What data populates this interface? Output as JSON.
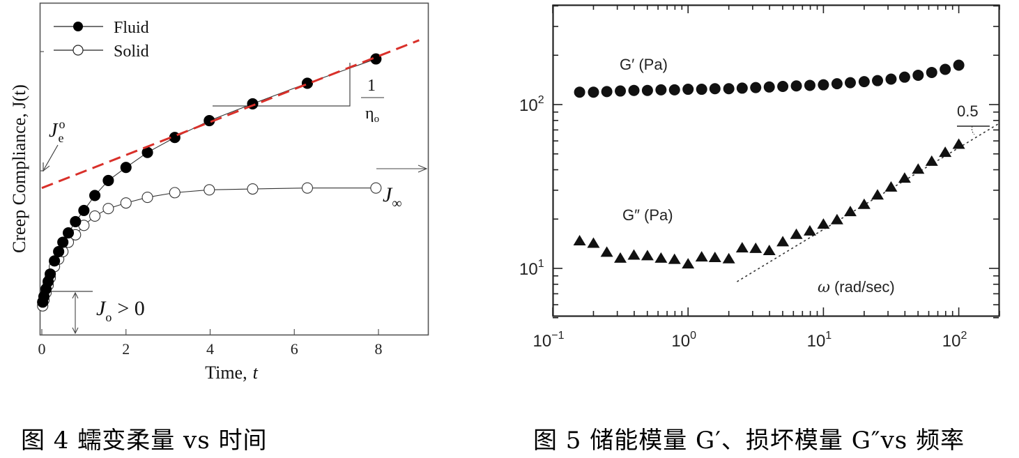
{
  "captions": {
    "left": "图 4 蠕变柔量 vs 时间",
    "right": "图 5 储能模量 G′、损坏模量 G″vs 频率"
  },
  "chart_data": [
    {
      "type": "scatter",
      "title": "",
      "xlabel": "Time, t",
      "ylabel": "Creep Compliance, J(t)",
      "xlim": [
        0,
        9
      ],
      "x_ticks": [
        "0",
        "2",
        "4",
        "6",
        "8"
      ],
      "grid": false,
      "legend_position": "upper-left",
      "legend": [
        "Fluid",
        "Solid"
      ],
      "colors": {
        "fluid": "#000000",
        "solid": "#ffffff",
        "fit_line": "#d9302a",
        "axes": "#555555"
      },
      "series": [
        {
          "name": "Fluid",
          "marker": "filled-circle",
          "x": [
            0.02,
            0.05,
            0.1,
            0.15,
            0.2,
            0.3,
            0.4,
            0.5,
            0.63,
            0.8,
            1.0,
            1.26,
            1.58,
            2.0,
            2.51,
            3.16,
            3.98,
            5.01,
            6.31,
            7.94
          ],
          "y": [
            0.05,
            0.08,
            0.12,
            0.16,
            0.2,
            0.27,
            0.32,
            0.37,
            0.42,
            0.48,
            0.54,
            0.62,
            0.7,
            0.77,
            0.85,
            0.93,
            1.02,
            1.11,
            1.22,
            1.35
          ]
        },
        {
          "name": "Solid",
          "marker": "open-circle",
          "x": [
            0.02,
            0.05,
            0.1,
            0.15,
            0.2,
            0.3,
            0.4,
            0.5,
            0.63,
            0.8,
            1.0,
            1.26,
            1.58,
            2.0,
            2.51,
            3.16,
            3.98,
            5.01,
            6.31,
            7.94
          ],
          "y": [
            0.03,
            0.06,
            0.1,
            0.14,
            0.18,
            0.24,
            0.28,
            0.32,
            0.37,
            0.41,
            0.46,
            0.51,
            0.55,
            0.58,
            0.61,
            0.635,
            0.65,
            0.655,
            0.66,
            0.66
          ]
        }
      ],
      "fit_line": {
        "style": "dashed",
        "color": "#d9302a",
        "x": [
          0,
          9
        ],
        "y": [
          0.66,
          1.45
        ]
      },
      "annotations": [
        {
          "text": "J_e^o",
          "target": "intercept of dashed line at t=0"
        },
        {
          "text": "1/η_o",
          "target": "slope triangle"
        },
        {
          "text": "J_∞",
          "target": "solid plateau arrow"
        },
        {
          "text": "J_o > 0",
          "target": "initial instantaneous compliance"
        }
      ],
      "ylim": [
        -0.12,
        1.65
      ]
    },
    {
      "type": "scatter",
      "title": "",
      "xlabel": "ω (rad/sec)",
      "ylabel": "",
      "xscale": "log",
      "yscale": "log",
      "xlim": [
        0.1,
        200
      ],
      "ylim": [
        4.5,
        450
      ],
      "x_ticks": [
        "10⁻¹",
        "10⁰",
        "10¹",
        "10²"
      ],
      "y_ticks": [
        "10¹",
        "10²"
      ],
      "grid": false,
      "series": [
        {
          "name": "G′ (Pa)",
          "marker": "filled-circle",
          "x": [
            0.158,
            0.2,
            0.251,
            0.316,
            0.398,
            0.501,
            0.631,
            0.794,
            1.0,
            1.26,
            1.58,
            2.0,
            2.51,
            3.16,
            3.98,
            5.01,
            6.31,
            7.94,
            10.0,
            12.6,
            15.8,
            20.0,
            25.1,
            31.6,
            39.8,
            50.1,
            63.1,
            79.4,
            100.0
          ],
          "y": [
            119,
            119,
            120,
            121,
            122,
            122,
            123,
            123,
            124,
            124,
            125,
            125,
            126,
            127,
            128,
            129,
            130,
            131,
            132,
            134,
            136,
            138,
            140,
            143,
            147,
            151,
            157,
            164,
            174
          ]
        },
        {
          "name": "G″ (Pa)",
          "marker": "filled-triangle",
          "x": [
            0.158,
            0.2,
            0.251,
            0.316,
            0.398,
            0.501,
            0.631,
            0.794,
            1.0,
            1.26,
            1.58,
            2.0,
            2.51,
            3.16,
            3.98,
            5.01,
            6.31,
            7.94,
            10.0,
            12.6,
            15.8,
            20.0,
            25.1,
            31.6,
            39.8,
            50.1,
            63.1,
            79.4,
            100.0
          ],
          "y": [
            14.8,
            14.3,
            12.6,
            11.6,
            12.1,
            12.0,
            11.6,
            11.4,
            10.7,
            11.8,
            11.7,
            11.5,
            13.4,
            13.3,
            12.9,
            14.6,
            16.2,
            17.0,
            18.7,
            19.9,
            22.3,
            24.7,
            28.2,
            31.5,
            35.7,
            40.5,
            45.3,
            51.3,
            57.5
          ]
        }
      ],
      "fit_line": {
        "style": "dotted",
        "slope": 0.5,
        "x": [
          2.3,
          200
        ],
        "y": [
          8.3,
          77
        ]
      },
      "annotations": [
        {
          "text": "G′ (Pa)"
        },
        {
          "text": "G″ (Pa)"
        },
        {
          "text": "0.5",
          "target": "slope of dotted line"
        },
        {
          "text": "ω (rad/sec)"
        }
      ]
    }
  ],
  "left_chart": {
    "ylabel": "Creep Compliance, J(t)",
    "xlabel_main": "Time,",
    "xlabel_var": "t",
    "x_ticks": [
      "0",
      "2",
      "4",
      "6",
      "8"
    ],
    "legend": {
      "fluid": "Fluid",
      "solid": "Solid"
    },
    "ann_je": "J",
    "ann_je_sup": "o",
    "ann_je_sub": "e",
    "ann_slope_num": "1",
    "ann_slope_den": "η",
    "ann_slope_den_sub": "o",
    "ann_jinf": "J",
    "ann_jinf_sub": "∞",
    "ann_jo": "J",
    "ann_jo_sub": "o",
    "ann_jo_rest": "> 0"
  },
  "right_chart": {
    "x_ticks": [
      {
        "base": "10",
        "exp": "−1"
      },
      {
        "base": "10",
        "exp": "0"
      },
      {
        "base": "10",
        "exp": "1"
      },
      {
        "base": "10",
        "exp": "2"
      }
    ],
    "y_ticks": [
      {
        "base": "10",
        "exp": "2"
      },
      {
        "base": "10",
        "exp": "1"
      }
    ],
    "label_gp": "G′ (Pa)",
    "label_gpp": "G″ (Pa)",
    "label_slope": "0.5",
    "label_omega": "ω",
    "label_omega_unit": "(rad/sec)"
  }
}
